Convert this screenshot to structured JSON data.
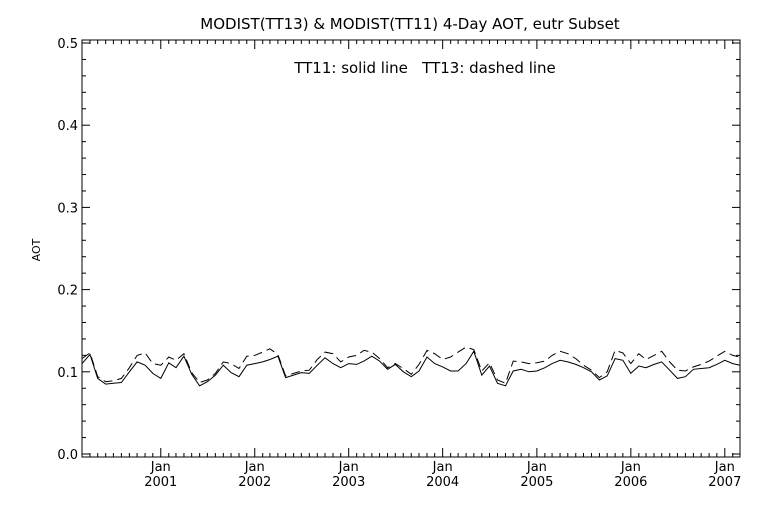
{
  "chart_data": {
    "type": "line",
    "title": "MODIST(TT13) & MODIST(TT11) 4-Day AOT, eutr Subset",
    "annotation": "TT11: solid line   TT13: dashed line",
    "ylabel": "AOT",
    "xlabel": "",
    "xlim": [
      "2000-03-01",
      "2007-03-01"
    ],
    "ylim": [
      0,
      0.5
    ],
    "y_ticks": [
      "0.0",
      "0.1",
      "0.2",
      "0.3",
      "0.4",
      "0.5"
    ],
    "x_ticks": [
      {
        "date": "2001-01-01",
        "month": "Jan",
        "year": "2001"
      },
      {
        "date": "2002-01-01",
        "month": "Jan",
        "year": "2002"
      },
      {
        "date": "2003-01-01",
        "month": "Jan",
        "year": "2003"
      },
      {
        "date": "2004-01-01",
        "month": "Jan",
        "year": "2004"
      },
      {
        "date": "2005-01-01",
        "month": "Jan",
        "year": "2005"
      },
      {
        "date": "2006-01-01",
        "month": "Jan",
        "year": "2006"
      },
      {
        "date": "2007-01-01",
        "month": "Jan",
        "year": "2007"
      }
    ],
    "x": [
      "2000-03-01",
      "2000-04-01",
      "2000-05-01",
      "2000-06-01",
      "2000-07-01",
      "2000-08-01",
      "2000-09-01",
      "2000-10-01",
      "2000-11-01",
      "2000-12-01",
      "2001-01-01",
      "2001-02-01",
      "2001-03-01",
      "2001-04-01",
      "2001-05-01",
      "2001-06-01",
      "2001-07-01",
      "2001-08-01",
      "2001-09-01",
      "2001-10-01",
      "2001-11-01",
      "2001-12-01",
      "2002-01-01",
      "2002-02-01",
      "2002-03-01",
      "2002-04-01",
      "2002-05-01",
      "2002-06-01",
      "2002-07-01",
      "2002-08-01",
      "2002-09-01",
      "2002-10-01",
      "2002-11-01",
      "2002-12-01",
      "2003-01-01",
      "2003-02-01",
      "2003-03-01",
      "2003-04-01",
      "2003-05-01",
      "2003-06-01",
      "2003-07-01",
      "2003-08-01",
      "2003-09-01",
      "2003-10-01",
      "2003-11-01",
      "2003-12-01",
      "2004-01-01",
      "2004-02-01",
      "2004-03-01",
      "2004-04-01",
      "2004-05-01",
      "2004-06-01",
      "2004-07-01",
      "2004-08-01",
      "2004-09-01",
      "2004-10-01",
      "2004-11-01",
      "2004-12-01",
      "2005-01-01",
      "2005-02-01",
      "2005-03-01",
      "2005-04-01",
      "2005-05-01",
      "2005-06-01",
      "2005-07-01",
      "2005-08-01",
      "2005-09-01",
      "2005-10-01",
      "2005-11-01",
      "2005-12-01",
      "2006-01-01",
      "2006-02-01",
      "2006-03-01",
      "2006-04-01",
      "2006-05-01",
      "2006-06-01",
      "2006-07-01",
      "2006-08-01",
      "2006-09-01",
      "2006-10-01",
      "2006-11-01",
      "2006-12-01",
      "2007-01-01",
      "2007-02-01",
      "2007-03-01"
    ],
    "series": [
      {
        "name": "TT11",
        "style": "solid",
        "values": [
          0.11,
          0.121,
          0.092,
          0.085,
          0.086,
          0.087,
          0.1,
          0.112,
          0.108,
          0.098,
          0.092,
          0.111,
          0.105,
          0.119,
          0.097,
          0.083,
          0.088,
          0.096,
          0.108,
          0.099,
          0.094,
          0.108,
          0.11,
          0.112,
          0.115,
          0.119,
          0.093,
          0.096,
          0.099,
          0.098,
          0.108,
          0.117,
          0.11,
          0.105,
          0.11,
          0.109,
          0.113,
          0.119,
          0.113,
          0.103,
          0.109,
          0.1,
          0.094,
          0.101,
          0.118,
          0.11,
          0.106,
          0.101,
          0.101,
          0.11,
          0.125,
          0.096,
          0.107,
          0.086,
          0.083,
          0.101,
          0.103,
          0.1,
          0.101,
          0.105,
          0.11,
          0.114,
          0.112,
          0.109,
          0.105,
          0.1,
          0.09,
          0.095,
          0.116,
          0.114,
          0.098,
          0.107,
          0.105,
          0.109,
          0.112,
          0.102,
          0.092,
          0.094,
          0.103,
          0.104,
          0.105,
          0.109,
          0.114,
          0.11,
          0.108
        ]
      },
      {
        "name": "TT13",
        "style": "dashed",
        "values": [
          0.116,
          0.123,
          0.094,
          0.088,
          0.089,
          0.092,
          0.105,
          0.12,
          0.123,
          0.11,
          0.108,
          0.118,
          0.114,
          0.122,
          0.099,
          0.087,
          0.09,
          0.098,
          0.112,
          0.11,
          0.104,
          0.119,
          0.12,
          0.124,
          0.128,
          0.121,
          0.095,
          0.098,
          0.101,
          0.102,
          0.115,
          0.124,
          0.122,
          0.112,
          0.118,
          0.12,
          0.126,
          0.124,
          0.116,
          0.105,
          0.11,
          0.104,
          0.097,
          0.109,
          0.126,
          0.122,
          0.115,
          0.118,
          0.124,
          0.13,
          0.127,
          0.101,
          0.111,
          0.09,
          0.086,
          0.113,
          0.112,
          0.11,
          0.111,
          0.113,
          0.12,
          0.125,
          0.122,
          0.116,
          0.108,
          0.102,
          0.093,
          0.1,
          0.126,
          0.123,
          0.11,
          0.122,
          0.115,
          0.12,
          0.125,
          0.112,
          0.102,
          0.101,
          0.106,
          0.109,
          0.113,
          0.119,
          0.125,
          0.12,
          0.118
        ]
      }
    ]
  }
}
